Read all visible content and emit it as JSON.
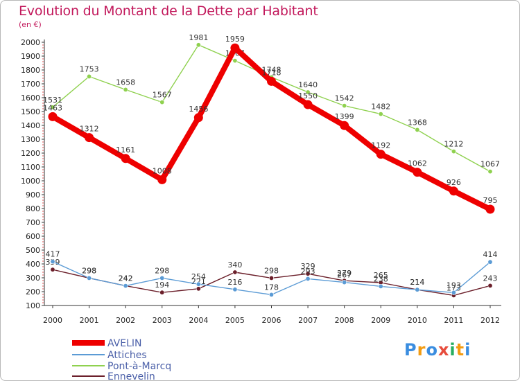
{
  "title": "Evolution du Montant de la Dette par Habitant",
  "subtitle": "(en €)",
  "logo": {
    "letters": [
      "P",
      "r",
      "o",
      "x",
      "i",
      "t",
      "i"
    ],
    "colors": [
      "#3a8de0",
      "#f39c12",
      "#3a8de0",
      "#e74c3c",
      "#27ae60",
      "#f39c12",
      "#3a8de0"
    ]
  },
  "chart_data": {
    "type": "line",
    "title": "Evolution du Montant de la Dette par Habitant",
    "subtitle": "(en €)",
    "x": [
      "2000",
      "2001",
      "2002",
      "2003",
      "2004",
      "2005",
      "2006",
      "2007",
      "2008",
      "2009",
      "2010",
      "2011",
      "2012"
    ],
    "ylim": [
      100,
      2000
    ],
    "yticks": [
      100,
      200,
      300,
      400,
      500,
      600,
      700,
      800,
      900,
      1000,
      1100,
      1200,
      1300,
      1400,
      1500,
      1600,
      1700,
      1800,
      1900,
      2000
    ],
    "grid": false,
    "legend_position": "bottom-left",
    "series": [
      {
        "name": "AVELIN",
        "color": "#ee0000",
        "values": [
          1463,
          1312,
          1161,
          1008,
          1456,
          1959,
          1718,
          1550,
          1399,
          1192,
          1062,
          926,
          795
        ]
      },
      {
        "name": "Attiches",
        "color": "#5b9bd5",
        "values": [
          417,
          298,
          242,
          298,
          254,
          216,
          178,
          293,
          267,
          238,
          214,
          193,
          414
        ]
      },
      {
        "name": "Pont-à-Marcq",
        "color": "#8fd14f",
        "values": [
          1531,
          1753,
          1658,
          1567,
          1981,
          1867,
          1748,
          1640,
          1542,
          1482,
          1368,
          1212,
          1067
        ]
      },
      {
        "name": "Ennevelin",
        "color": "#6b1f2a",
        "values": [
          359,
          298,
          242,
          194,
          221,
          340,
          298,
          329,
          279,
          265,
          214,
          173,
          243
        ]
      }
    ]
  }
}
